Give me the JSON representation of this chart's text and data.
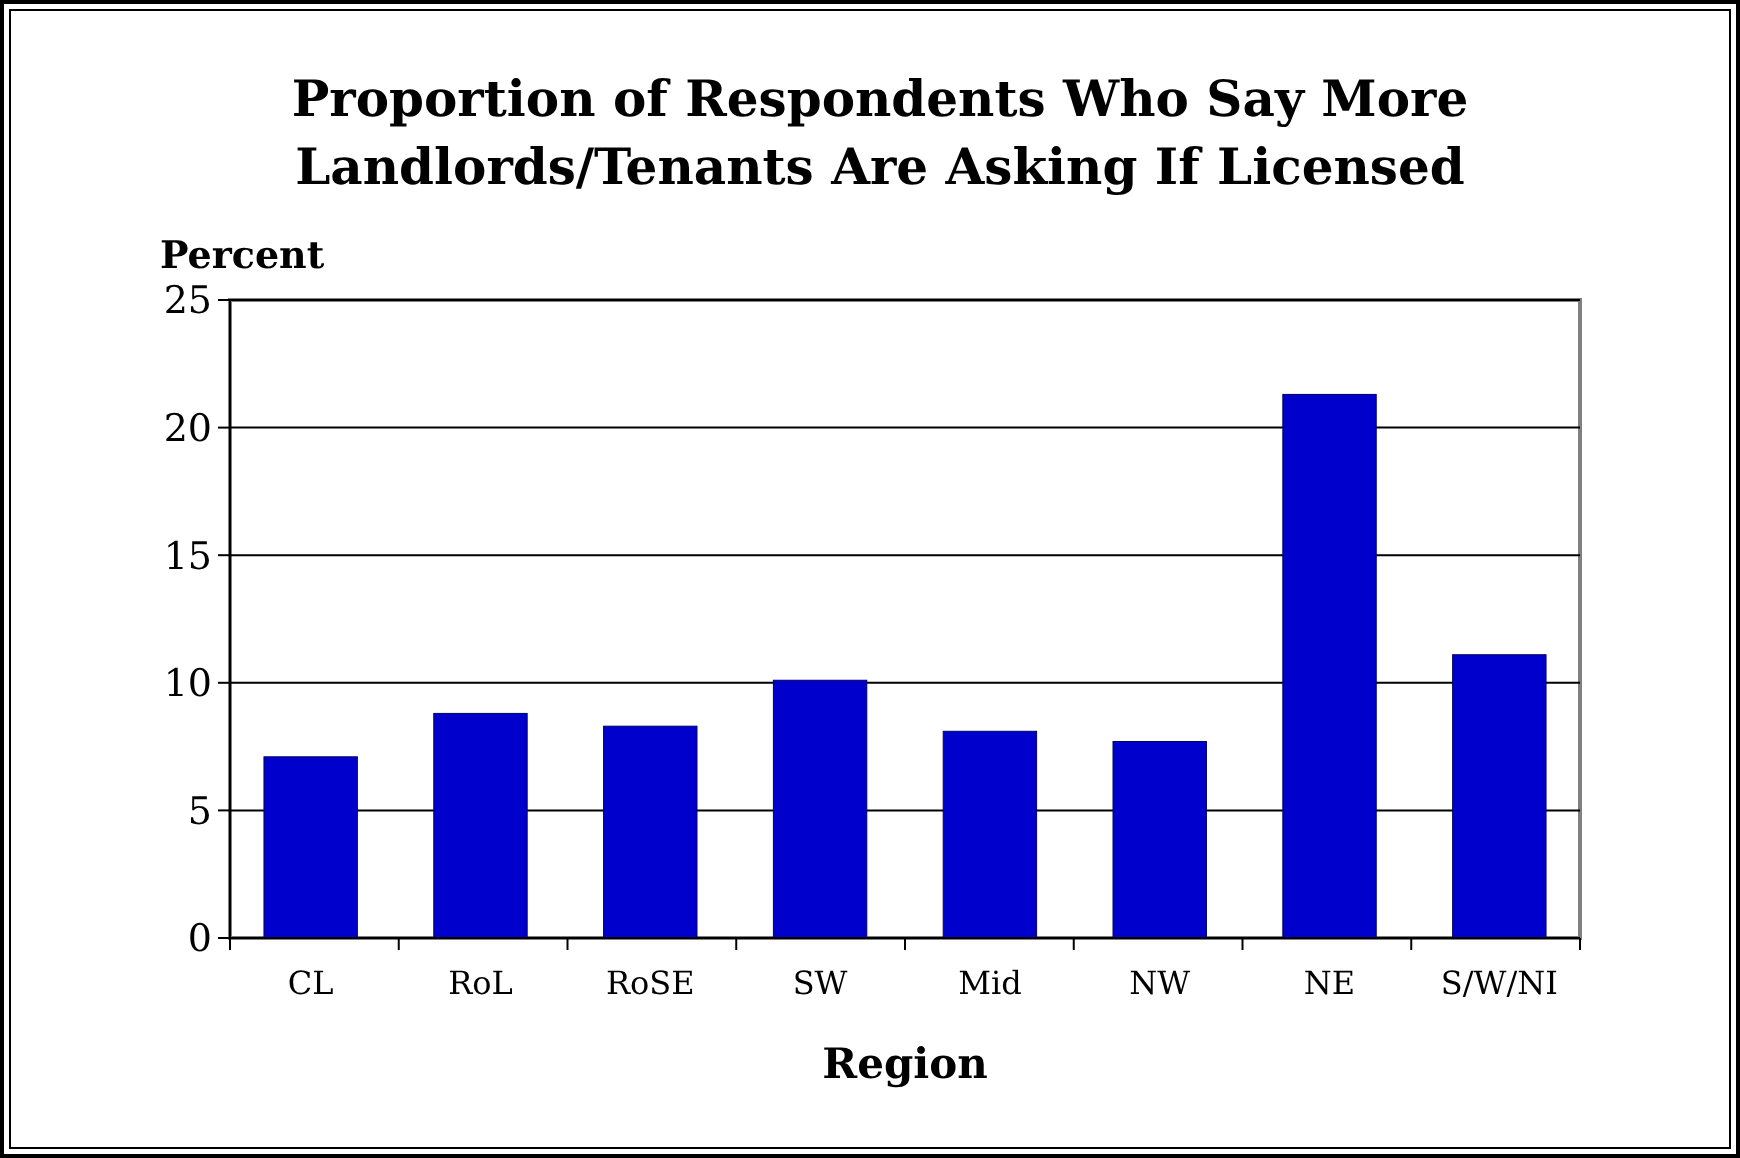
{
  "chart_data": {
    "type": "bar",
    "title": "Proportion of Respondents Who Say More Landlords/Tenants Are Asking If Licensed",
    "xlabel": "Region",
    "ylabel": "Percent",
    "categories": [
      "CL",
      "RoL",
      "RoSE",
      "SW",
      "Mid",
      "NW",
      "NE",
      "S/W/NI"
    ],
    "values": [
      7.1,
      8.8,
      8.3,
      10.1,
      8.1,
      7.7,
      21.3,
      11.1
    ],
    "color": "#0000cc",
    "ylim": [
      0,
      25
    ],
    "yticks": [
      0,
      5,
      10,
      15,
      20,
      25
    ],
    "grid": "y"
  }
}
